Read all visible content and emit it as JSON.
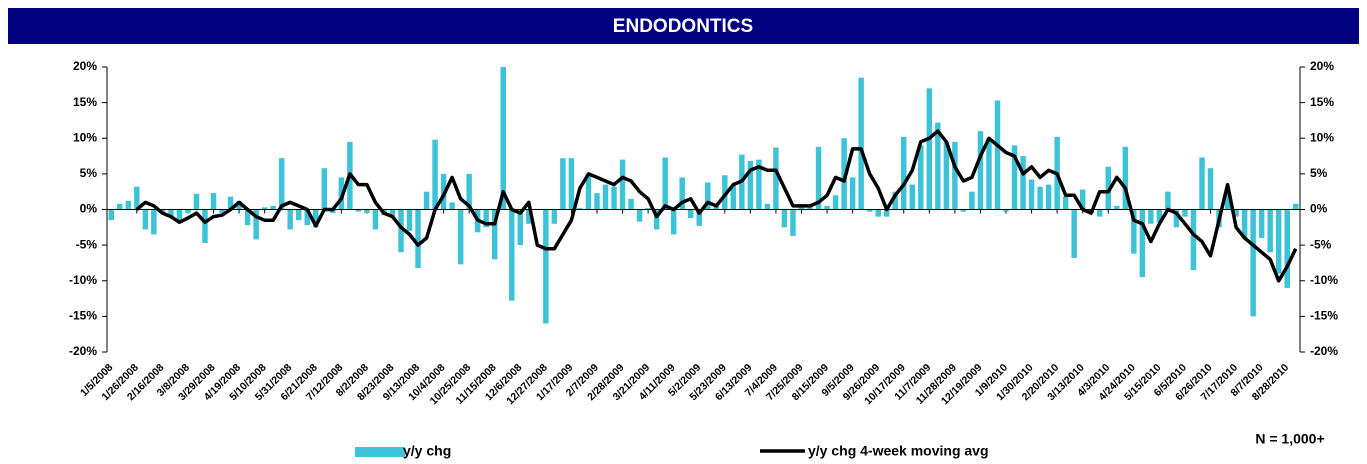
{
  "chart_data": {
    "type": "bar_line",
    "title": "ENDODONTICS",
    "annotation": "N = 1,000+",
    "categories": [
      "1/5/2008",
      null,
      null,
      "1/26/2008",
      null,
      null,
      "2/16/2008",
      null,
      null,
      "3/8/2008",
      null,
      null,
      "3/29/2008",
      null,
      null,
      "4/19/2008",
      null,
      null,
      "5/10/2008",
      null,
      null,
      "5/31/2008",
      null,
      null,
      "6/21/2008",
      null,
      null,
      "7/12/2008",
      null,
      null,
      "8/2/2008",
      null,
      null,
      "8/23/2008",
      null,
      null,
      "9/13/2008",
      null,
      null,
      "10/4/2008",
      null,
      null,
      "10/25/2008",
      null,
      null,
      "11/15/2008",
      null,
      null,
      "12/6/2008",
      null,
      null,
      "12/27/2008",
      null,
      null,
      "1/17/2009",
      null,
      null,
      "2/7/2009",
      null,
      null,
      "2/28/2009",
      null,
      null,
      "3/21/2009",
      null,
      null,
      "4/11/2009",
      null,
      null,
      "5/2/2009",
      null,
      null,
      "5/23/2009",
      null,
      null,
      "6/13/2009",
      null,
      null,
      "7/4/2009",
      null,
      null,
      "7/25/2009",
      null,
      null,
      "8/15/2009",
      null,
      null,
      "9/5/2009",
      null,
      null,
      "9/26/2009",
      null,
      null,
      "10/17/2009",
      null,
      null,
      "11/7/2009",
      null,
      null,
      "11/28/2009",
      null,
      null,
      "12/19/2009",
      null,
      null,
      "1/9/2010",
      null,
      null,
      "1/30/2010",
      null,
      null,
      "2/20/2010",
      null,
      null,
      "3/13/2010",
      null,
      null,
      "4/3/2010",
      null,
      null,
      "4/24/2010",
      null,
      null,
      "5/15/2010",
      null,
      null,
      "6/5/2010",
      null,
      null,
      "6/26/2010",
      null,
      null,
      "7/17/2010",
      null,
      null,
      "8/7/2010",
      null,
      null,
      "8/28/2010",
      null
    ],
    "series": [
      {
        "name": "y/y chg",
        "type": "bar",
        "color": "#3cc3d8",
        "values": [
          -1.5,
          0.8,
          1.2,
          3.2,
          -2.8,
          -3.5,
          -0.5,
          -1,
          -1.8,
          -0.5,
          2.2,
          -4.7,
          2.3,
          -0.5,
          1.8,
          1.2,
          -2.2,
          -4.2,
          0.3,
          0.5,
          7.2,
          -2.8,
          -1.5,
          -2.2,
          -2.5,
          5.8,
          -0.5,
          4.5,
          9.5,
          -0.3,
          -0.5,
          -2.8,
          -0.8,
          -1,
          -6,
          -3,
          -8.2,
          2.5,
          9.8,
          5,
          1,
          -7.7,
          5,
          -3.2,
          -2.5,
          -7,
          20,
          -12.8,
          -5,
          -2,
          0,
          -16,
          -2,
          7.2,
          7.2,
          0.2,
          5,
          2.3,
          3.5,
          3.2,
          7,
          1.5,
          -1.7,
          0.2,
          -2.8,
          7.3,
          -3.5,
          4.5,
          -1.2,
          -2.3,
          3.8,
          0.5,
          4.8,
          3.5,
          7.7,
          6.8,
          7,
          0.8,
          8.7,
          -2.5,
          -3.7,
          0.3,
          0.5,
          8.8,
          0.5,
          2,
          10,
          4.5,
          18.5,
          -0.3,
          -1,
          -1,
          2.5,
          10.2,
          3.5,
          9,
          17,
          12.2,
          9.5,
          9.5,
          -0.3,
          2.5,
          11,
          10,
          15.3,
          -0.3,
          9,
          7.5,
          4.2,
          3.2,
          3.5,
          10.2,
          1.8,
          -6.8,
          2.8,
          -0.5,
          -1,
          6,
          0.5,
          8.8,
          -6.2,
          -9.5,
          -2,
          -1.8,
          2.5,
          -2.5,
          -1,
          -8.5,
          7.3,
          5.8,
          -2.5,
          3,
          -1,
          -4,
          -15,
          -4,
          -6,
          -9,
          -11,
          0.8
        ]
      },
      {
        "name": "y/y chg 4-week moving avg",
        "type": "line",
        "color": "#000000",
        "values": [
          null,
          null,
          null,
          0,
          1,
          0.5,
          -0.5,
          -1,
          -1.8,
          -1.2,
          -0.5,
          -1.8,
          -1,
          -0.8,
          0,
          1,
          0,
          -1,
          -1.5,
          -1.5,
          0.5,
          1,
          0.5,
          0,
          -2.3,
          0,
          0,
          1.5,
          5,
          3.5,
          3.5,
          1,
          -0.5,
          -1,
          -2.5,
          -3.5,
          -5,
          -4,
          0,
          2,
          4.5,
          1.5,
          0.5,
          -1.5,
          -2,
          -2,
          2.5,
          0,
          -0.5,
          1,
          -5,
          -5.5,
          -5.5,
          -3.5,
          -1.5,
          3,
          5,
          4.5,
          4,
          3.5,
          4.5,
          4,
          2.5,
          1.5,
          -1,
          0.5,
          0,
          1,
          1.5,
          -0.5,
          1,
          0.5,
          2,
          3.5,
          4,
          5.5,
          6,
          5.5,
          5.5,
          3,
          0.5,
          0.5,
          0.5,
          1,
          2,
          4.5,
          4,
          8.5,
          8.5,
          5,
          3,
          0,
          2,
          3.5,
          5.5,
          9.5,
          10,
          11,
          9.5,
          6,
          4,
          4.5,
          7.5,
          10,
          9,
          8,
          7.5,
          5,
          6,
          4.5,
          5.5,
          5,
          2,
          2,
          0,
          -0.5,
          2.5,
          2.5,
          4.5,
          3,
          -1.5,
          -2,
          -4.5,
          -2,
          0,
          -0.5,
          -2,
          -3.5,
          -4.5,
          -6.5,
          -1.5,
          3.5,
          -2.5,
          -4,
          -5,
          -6,
          -7,
          -10,
          -8,
          -5.5
        ]
      }
    ],
    "ylim": [
      -20,
      20
    ],
    "yticks": [
      {
        "value": -20,
        "label": "-20%"
      },
      {
        "value": -15,
        "label": "-15%"
      },
      {
        "value": -10,
        "label": "-10%"
      },
      {
        "value": -5,
        "label": "-5%"
      },
      {
        "value": 0,
        "label": "0%"
      },
      {
        "value": 5,
        "label": "5%"
      },
      {
        "value": 10,
        "label": "10%"
      },
      {
        "value": 15,
        "label": "15%"
      },
      {
        "value": 20,
        "label": "20%"
      }
    ],
    "y2lim": [
      -20,
      20
    ],
    "y2ticks": [
      {
        "value": -20,
        "label": "-20%"
      },
      {
        "value": -15,
        "label": "-15%"
      },
      {
        "value": -10,
        "label": "-10%"
      },
      {
        "value": -5,
        "label": "-5%"
      },
      {
        "value": 0,
        "label": "0%"
      },
      {
        "value": 5,
        "label": "5%"
      },
      {
        "value": 10,
        "label": "10%"
      },
      {
        "value": 15,
        "label": "15%"
      },
      {
        "value": 20,
        "label": "20%"
      }
    ],
    "grid": false,
    "legend": "bottom"
  }
}
